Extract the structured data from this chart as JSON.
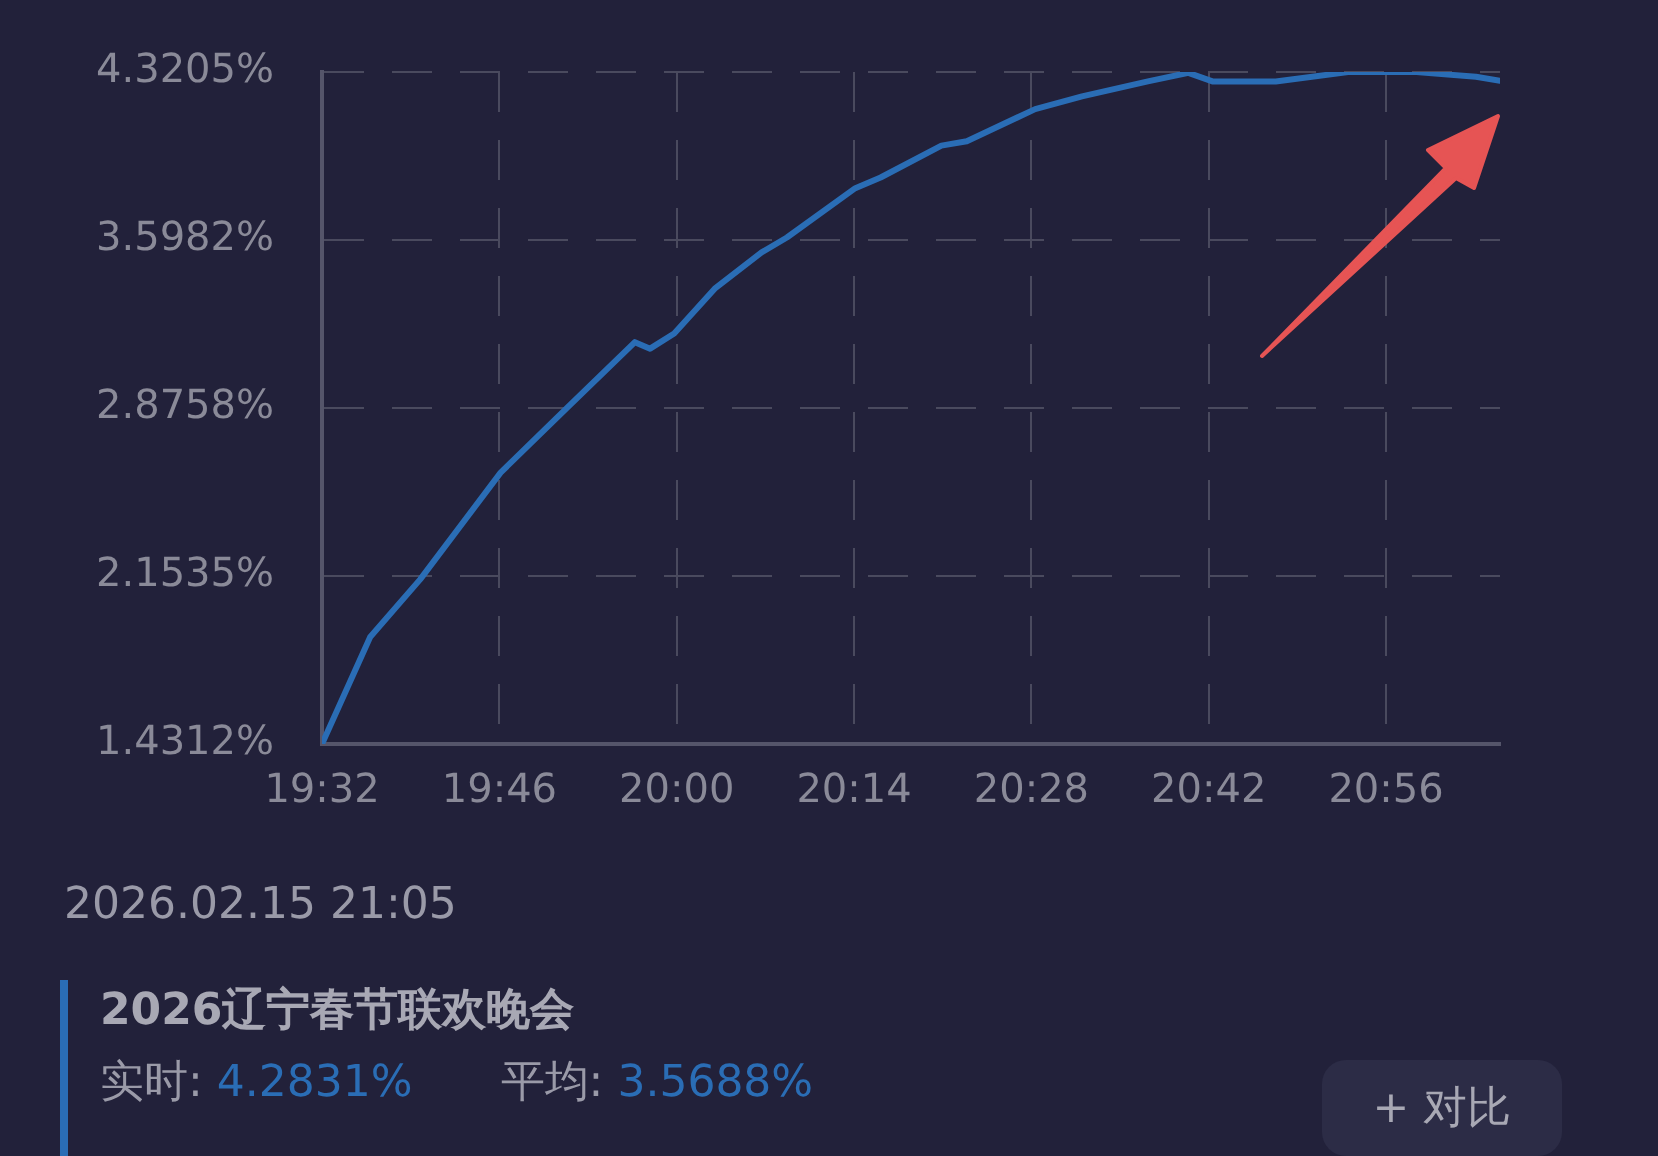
{
  "chart_data": {
    "type": "line",
    "x": [
      19.5333,
      19.5967,
      19.6625,
      19.7683,
      19.855,
      19.945,
      19.965,
      19.9967,
      20.05,
      20.1117,
      20.145,
      20.235,
      20.2683,
      20.3483,
      20.3817,
      20.4717,
      20.5333,
      20.62,
      20.6733,
      20.705,
      20.7883,
      20.8833,
      20.9733,
      21.0517,
      21.0833
    ],
    "series": [
      {
        "name": "2026辽宁春节联欢晚会",
        "color": "#2a6db5",
        "values": [
          1.4312,
          1.891,
          2.139,
          2.598,
          2.874,
          3.159,
          3.131,
          3.196,
          3.389,
          3.545,
          3.609,
          3.821,
          3.867,
          4.004,
          4.023,
          4.161,
          4.216,
          4.28,
          4.317,
          4.28,
          4.28,
          4.32,
          4.32,
          4.3,
          4.2831
        ]
      }
    ],
    "xlim": [
      19.5333,
      21.0833
    ],
    "xticks": [
      {
        "value": 19.5333,
        "label": "19:32"
      },
      {
        "value": 19.7667,
        "label": "19:46"
      },
      {
        "value": 20,
        "label": "20:00"
      },
      {
        "value": 20.2333,
        "label": "20:14"
      },
      {
        "value": 20.4667,
        "label": "20:28"
      },
      {
        "value": 20.7,
        "label": "20:42"
      },
      {
        "value": 20.9333,
        "label": "20:56"
      }
    ],
    "ylim": [
      1.4312,
      4.3205
    ],
    "yticks": [
      {
        "value": 1.4312,
        "label": "1.4312%"
      },
      {
        "value": 2.1535,
        "label": "2.1535%"
      },
      {
        "value": 2.8758,
        "label": "2.8758%"
      },
      {
        "value": 3.5982,
        "label": "3.5982%"
      },
      {
        "value": 4.3205,
        "label": "4.3205%"
      }
    ],
    "grid": true,
    "legend": false,
    "marker": "none",
    "line_style": "solid",
    "annotations": [
      "2026.02.15 21:05",
      "实时: 4.2831%",
      "平均: 3.5688%",
      "+ 对比"
    ]
  }
}
